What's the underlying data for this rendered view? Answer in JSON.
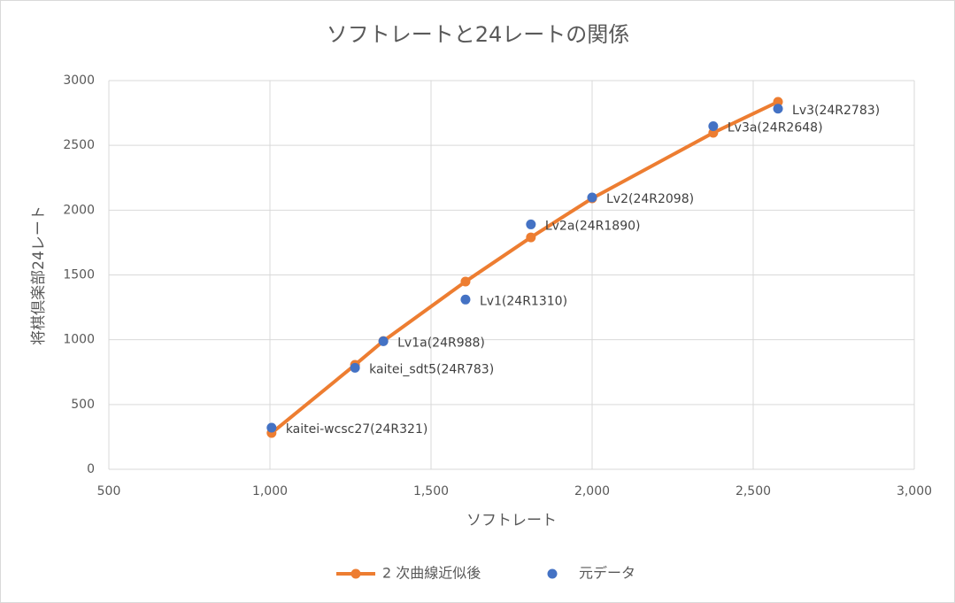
{
  "chart_data": {
    "type": "scatter",
    "title": "ソフトレートと24レートの関係",
    "x_label": "ソフトレート",
    "y_label": "将棋倶楽部24レート",
    "xlim": [
      500,
      3000
    ],
    "xticks": [
      500,
      {
        "value": 1000,
        "label": "1,000"
      },
      {
        "value": 1500,
        "label": "1,500"
      },
      {
        "value": 2000,
        "label": "2,000"
      },
      {
        "value": 2500,
        "label": "2,500"
      },
      {
        "value": 3000,
        "label": "3,000"
      }
    ],
    "ylim": [
      0,
      3000
    ],
    "yticks": [
      0,
      500,
      1000,
      1500,
      2000,
      2500,
      3000
    ],
    "grid": true,
    "legend": "bottom",
    "series": [
      {
        "name": "2 次曲線近似後",
        "color": "#ed7d31",
        "line": true,
        "x": [
          1005,
          1264,
          1352,
          1607,
          1810,
          2000,
          2376,
          2577
        ],
        "values": [
          280,
          806,
          990,
          1449,
          1790,
          2091,
          2597,
          2836
        ]
      },
      {
        "name": "元データ",
        "color": "#4472c4",
        "line": false,
        "x": [
          1005,
          1264,
          1352,
          1607,
          1810,
          2000,
          2376,
          2577
        ],
        "values": [
          321,
          783,
          988,
          1310,
          1890,
          2098,
          2648,
          2783
        ],
        "labels": [
          "kaitei-wcsc27(24R321)",
          "kaitei_sdt5(24R783)",
          "Lv1a(24R988)",
          "Lv1(24R1310)",
          "Lv2a(24R1890)",
          "Lv2(24R2098)",
          "Lv3a(24R2648)",
          "Lv3(24R2783)"
        ]
      }
    ]
  }
}
